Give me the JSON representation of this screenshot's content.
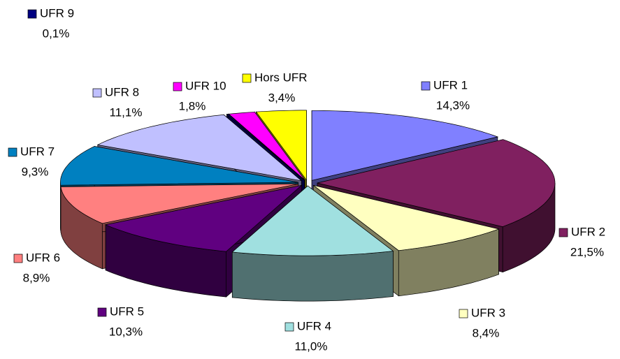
{
  "chart_data": {
    "type": "pie3d",
    "categories": [
      "UFR 1",
      "UFR 2",
      "UFR 3",
      "UFR 4",
      "UFR 5",
      "UFR 6",
      "UFR 7",
      "UFR 8",
      "UFR 9",
      "UFR 10",
      "Hors UFR"
    ],
    "values": [
      14.3,
      21.5,
      8.4,
      11.0,
      10.3,
      8.9,
      9.3,
      11.1,
      0.1,
      1.8,
      3.4
    ],
    "value_labels": [
      "14,3%",
      "21,5%",
      "8,4%",
      "11,0%",
      "10,3%",
      "8,9%",
      "9,3%",
      "11,1%",
      "0,1%",
      "1,8%",
      "3,4%"
    ],
    "colors": [
      "#8080ff",
      "#802060",
      "#ffffc0",
      "#a0e0e0",
      "#600080",
      "#ff8080",
      "#0080c0",
      "#c0c0ff",
      "#000080",
      "#ff00ff",
      "#ffff00"
    ]
  }
}
